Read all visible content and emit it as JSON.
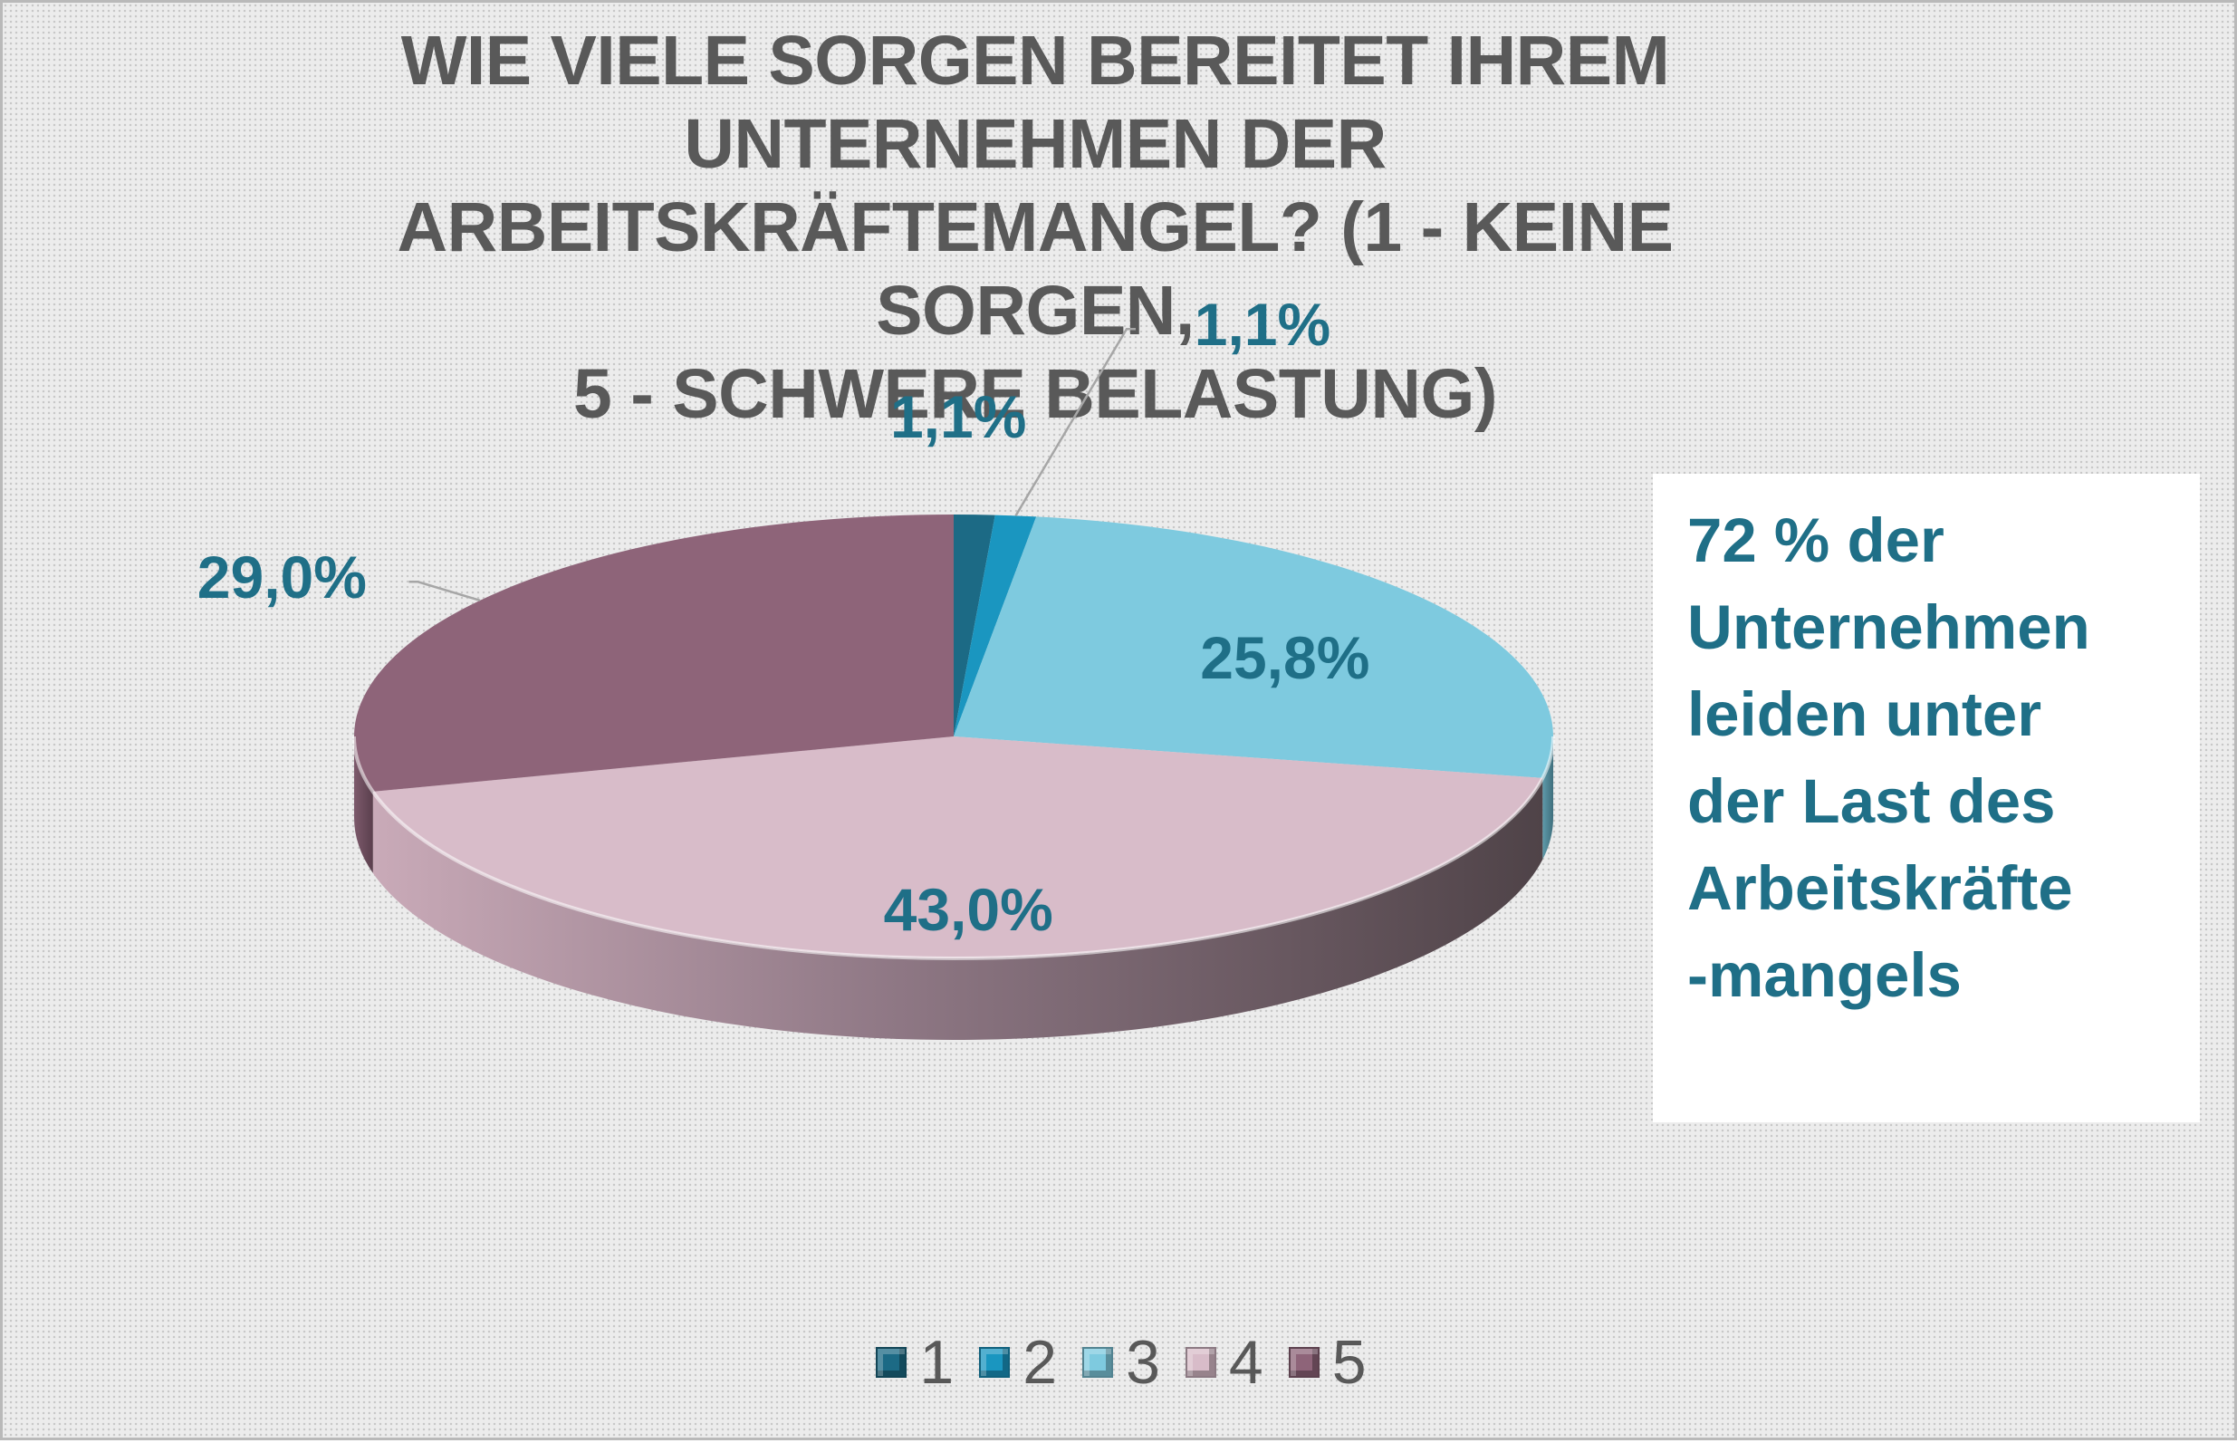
{
  "chart_data": {
    "type": "pie",
    "title": "WIE VIELE SORGEN BEREITET IHREM UNTERNEHMEN DER ARBEITSKRÄFTEMANGEL? (1 - KEINE SORGEN, 5 - SCHWERE BELASTUNG)",
    "categories": [
      "1",
      "2",
      "3",
      "4",
      "5"
    ],
    "values": [
      1.1,
      1.1,
      25.8,
      43.0,
      29.0
    ],
    "data_labels": [
      "1,1%",
      "1,1%",
      "25,8%",
      "43,0%",
      "29,0%"
    ],
    "colors": [
      "#1c6a85",
      "#1a96c0",
      "#7ecadf",
      "#d8bcc9",
      "#8e6479"
    ],
    "legend_position": "bottom",
    "style": "3d-pie"
  },
  "title_lines": [
    "WIE VIELE SORGEN BEREITET IHREM",
    "UNTERNEHMEN DER",
    "ARBEITSKRÄFTEMANGEL? (1 - KEINE SORGEN,",
    "5 - SCHWERE BELASTUNG)"
  ],
  "callout": {
    "text": "72 % der\nUnternehmen\nleiden unter\nder Last des\nArbeitskräfte\n-mangels"
  }
}
